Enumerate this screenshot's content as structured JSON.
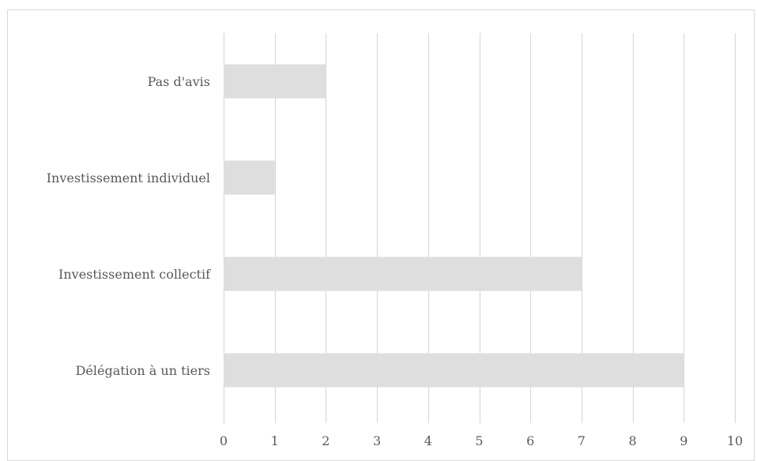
{
  "chart_data": {
    "type": "bar",
    "orientation": "horizontal",
    "categories": [
      "Pas d'avis",
      "Investissement individuel",
      "Investissement collectif",
      "Délégation à un tiers"
    ],
    "values": [
      2,
      1,
      7,
      9
    ],
    "xlim": [
      0,
      10
    ],
    "xticks": [
      "0",
      "1",
      "2",
      "3",
      "4",
      "5",
      "6",
      "7",
      "8",
      "9",
      "10"
    ],
    "grid": "vertical",
    "legend": "none",
    "bar_color": "#dedede",
    "grid_color": "#d9d9d9"
  }
}
